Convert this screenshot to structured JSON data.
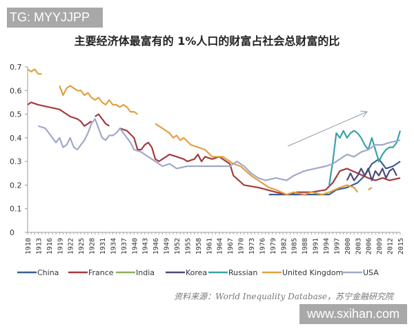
{
  "watermarks": {
    "top_left": "TG: MYYJJPP",
    "bottom_right": "www.sxihan.com"
  },
  "chart_data": {
    "type": "line",
    "title": "主要经济体最富有的 1%人口的财富占社会总财富的比",
    "xlabel": "",
    "ylabel": "",
    "xlim": [
      1910,
      2015
    ],
    "ylim": [
      0,
      0.7
    ],
    "y_ticks": [
      "0",
      "0.1",
      "0.2",
      "0.3",
      "0.4",
      "0.5",
      "0.6",
      "0.7"
    ],
    "x_ticks": [
      "1910",
      "1913",
      "1916",
      "1919",
      "1922",
      "1925",
      "1928",
      "1931",
      "1934",
      "1937",
      "1940",
      "1943",
      "1946",
      "1949",
      "1952",
      "1955",
      "1958",
      "1961",
      "1964",
      "1967",
      "1970",
      "1973",
      "1976",
      "1979",
      "1982",
      "1985",
      "1988",
      "1991",
      "1994",
      "1997",
      "2000",
      "2003",
      "2006",
      "2009",
      "2012",
      "2015"
    ],
    "grid": false,
    "legend_position": "bottom",
    "annotation": "upward-trend-arrow",
    "source": "资料来源：World Inequality Database，苏宁金融研究院",
    "series": [
      {
        "name": "China",
        "color": "#3a5f8f",
        "points": [
          [
            1978,
            0.16
          ],
          [
            1985,
            0.16
          ],
          [
            1990,
            0.16
          ],
          [
            1995,
            0.16
          ],
          [
            1997,
            0.18
          ],
          [
            2000,
            0.19
          ],
          [
            2003,
            0.21
          ],
          [
            2005,
            0.24
          ],
          [
            2007,
            0.29
          ],
          [
            2009,
            0.31
          ],
          [
            2011,
            0.27
          ],
          [
            2013,
            0.28
          ],
          [
            2015,
            0.3
          ]
        ]
      },
      {
        "name": "France",
        "color": "#a33a3e",
        "points": [
          [
            1910,
            0.54
          ],
          [
            1911,
            0.55
          ],
          [
            1913,
            0.54
          ],
          [
            1916,
            0.53
          ],
          [
            1919,
            0.52
          ],
          [
            1922,
            0.49
          ],
          [
            1924,
            0.48
          ],
          [
            1925,
            0.47
          ],
          [
            1926,
            0.45
          ],
          [
            1928,
            0.47
          ],
          [
            1928.5,
            null
          ],
          [
            1929,
            0.49
          ],
          [
            1930,
            0.5
          ],
          [
            1932,
            0.46
          ],
          [
            1933,
            0.45
          ],
          [
            1934,
            null
          ],
          [
            1936,
            0.44
          ],
          [
            1938,
            0.43
          ],
          [
            1940,
            0.4
          ],
          [
            1941,
            0.35
          ],
          [
            1942,
            0.35
          ],
          [
            1943,
            0.37
          ],
          [
            1944,
            0.38
          ],
          [
            1945,
            0.36
          ],
          [
            1946,
            0.31
          ],
          [
            1947,
            0.3
          ],
          [
            1948,
            0.31
          ],
          [
            1950,
            0.33
          ],
          [
            1952,
            0.32
          ],
          [
            1954,
            0.31
          ],
          [
            1955,
            0.3
          ],
          [
            1957,
            0.31
          ],
          [
            1958,
            0.33
          ],
          [
            1959,
            0.3
          ],
          [
            1960,
            0.32
          ],
          [
            1962,
            0.31
          ],
          [
            1964,
            0.32
          ],
          [
            1967,
            0.29
          ],
          [
            1968,
            0.24
          ],
          [
            1971,
            0.2
          ],
          [
            1975,
            0.19
          ],
          [
            1980,
            0.17
          ],
          [
            1983,
            0.16
          ],
          [
            1986,
            0.17
          ],
          [
            1990,
            0.17
          ],
          [
            1994,
            0.18
          ],
          [
            1996,
            0.21
          ],
          [
            1998,
            0.26
          ],
          [
            2000,
            0.27
          ],
          [
            2003,
            0.25
          ],
          [
            2006,
            0.23
          ],
          [
            2008,
            0.22
          ],
          [
            2010,
            0.23
          ],
          [
            2012,
            0.22
          ],
          [
            2015,
            0.23
          ]
        ]
      },
      {
        "name": "India",
        "color": "#8fb05a",
        "points": []
      },
      {
        "name": "Korea",
        "color": "#4a4a7a",
        "points": [
          [
            2000,
            0.22
          ],
          [
            2001,
            0.25
          ],
          [
            2002,
            0.22
          ],
          [
            2003,
            0.24
          ],
          [
            2004,
            0.27
          ],
          [
            2005,
            0.24
          ],
          [
            2006,
            0.27
          ],
          [
            2007,
            0.22
          ],
          [
            2008,
            0.26
          ],
          [
            2009,
            0.24
          ],
          [
            2010,
            0.27
          ],
          [
            2011,
            0.23
          ],
          [
            2012,
            0.26
          ],
          [
            2013,
            0.27
          ],
          [
            2014,
            0.24
          ]
        ]
      },
      {
        "name": "Russian",
        "color": "#3aa0aa",
        "points": [
          [
            1995,
            0.2
          ],
          [
            1996,
            0.3
          ],
          [
            1997,
            0.42
          ],
          [
            1998,
            0.4
          ],
          [
            1999,
            0.43
          ],
          [
            2000,
            0.4
          ],
          [
            2001,
            0.42
          ],
          [
            2002,
            0.43
          ],
          [
            2003,
            0.42
          ],
          [
            2004,
            0.4
          ],
          [
            2005,
            0.37
          ],
          [
            2006,
            0.35
          ],
          [
            2007,
            0.4
          ],
          [
            2008,
            0.35
          ],
          [
            2009,
            0.3
          ],
          [
            2010,
            0.33
          ],
          [
            2011,
            0.35
          ],
          [
            2012,
            0.36
          ],
          [
            2013,
            0.36
          ],
          [
            2014,
            0.38
          ],
          [
            2015,
            0.43
          ]
        ]
      },
      {
        "name": "United Kingdom",
        "color": "#e0a040",
        "points": [
          [
            1910,
            0.69
          ],
          [
            1911,
            0.68
          ],
          [
            1912,
            0.69
          ],
          [
            1913,
            0.67
          ],
          [
            1914,
            0.67
          ],
          [
            1915,
            null
          ],
          [
            1919,
            0.62
          ],
          [
            1920,
            0.58
          ],
          [
            1921,
            0.61
          ],
          [
            1922,
            0.62
          ],
          [
            1923,
            0.61
          ],
          [
            1924,
            0.6
          ],
          [
            1925,
            0.6
          ],
          [
            1926,
            0.58
          ],
          [
            1927,
            0.59
          ],
          [
            1928,
            0.57
          ],
          [
            1929,
            0.56
          ],
          [
            1930,
            0.57
          ],
          [
            1931,
            0.55
          ],
          [
            1932,
            0.54
          ],
          [
            1933,
            0.56
          ],
          [
            1934,
            0.54
          ],
          [
            1935,
            0.54
          ],
          [
            1936,
            0.53
          ],
          [
            1937,
            0.54
          ],
          [
            1938,
            0.53
          ],
          [
            1939,
            0.51
          ],
          [
            1940,
            0.51
          ],
          [
            1941,
            0.5
          ],
          [
            1943,
            null
          ],
          [
            1946,
            0.46
          ],
          [
            1948,
            0.44
          ],
          [
            1950,
            0.42
          ],
          [
            1951,
            0.4
          ],
          [
            1952,
            0.41
          ],
          [
            1953,
            0.39
          ],
          [
            1954,
            0.4
          ],
          [
            1956,
            0.37
          ],
          [
            1958,
            0.36
          ],
          [
            1960,
            0.35
          ],
          [
            1962,
            0.32
          ],
          [
            1965,
            0.32
          ],
          [
            1968,
            0.29
          ],
          [
            1970,
            0.28
          ],
          [
            1973,
            0.24
          ],
          [
            1975,
            0.22
          ],
          [
            1978,
            0.19
          ],
          [
            1980,
            0.18
          ],
          [
            1983,
            0.16
          ],
          [
            1985,
            0.17
          ],
          [
            1988,
            0.16
          ],
          [
            1990,
            0.17
          ],
          [
            1993,
            0.16
          ],
          [
            1995,
            0.17
          ],
          [
            1998,
            0.19
          ],
          [
            2000,
            0.2
          ],
          [
            2002,
            0.19
          ],
          [
            2003,
            0.17
          ],
          [
            2004,
            null
          ],
          [
            2006,
            0.18
          ],
          [
            2007,
            0.19
          ]
        ]
      },
      {
        "name": "USA",
        "color": "#a0a8c8",
        "points": [
          [
            1913,
            0.45
          ],
          [
            1915,
            0.44
          ],
          [
            1917,
            0.4
          ],
          [
            1918,
            0.38
          ],
          [
            1919,
            0.4
          ],
          [
            1920,
            0.36
          ],
          [
            1921,
            0.37
          ],
          [
            1922,
            0.4
          ],
          [
            1923,
            0.36
          ],
          [
            1924,
            0.35
          ],
          [
            1925,
            0.37
          ],
          [
            1926,
            0.39
          ],
          [
            1927,
            0.42
          ],
          [
            1928,
            0.46
          ],
          [
            1929,
            0.48
          ],
          [
            1930,
            0.44
          ],
          [
            1931,
            0.4
          ],
          [
            1932,
            0.39
          ],
          [
            1933,
            0.41
          ],
          [
            1934,
            0.41
          ],
          [
            1935,
            0.42
          ],
          [
            1936,
            0.44
          ],
          [
            1937,
            0.42
          ],
          [
            1938,
            0.4
          ],
          [
            1939,
            0.38
          ],
          [
            1940,
            0.35
          ],
          [
            1942,
            0.34
          ],
          [
            1944,
            0.32
          ],
          [
            1946,
            0.3
          ],
          [
            1948,
            0.28
          ],
          [
            1950,
            0.29
          ],
          [
            1952,
            0.27
          ],
          [
            1955,
            0.28
          ],
          [
            1958,
            0.28
          ],
          [
            1961,
            0.28
          ],
          [
            1964,
            0.28
          ],
          [
            1967,
            0.28
          ],
          [
            1969,
            0.3
          ],
          [
            1971,
            0.28
          ],
          [
            1973,
            0.25
          ],
          [
            1975,
            0.23
          ],
          [
            1977,
            0.22
          ],
          [
            1980,
            0.23
          ],
          [
            1983,
            0.22
          ],
          [
            1985,
            0.24
          ],
          [
            1988,
            0.26
          ],
          [
            1991,
            0.27
          ],
          [
            1994,
            0.28
          ],
          [
            1996,
            0.29
          ],
          [
            1998,
            0.31
          ],
          [
            2000,
            0.33
          ],
          [
            2002,
            0.32
          ],
          [
            2004,
            0.34
          ],
          [
            2006,
            0.35
          ],
          [
            2008,
            0.37
          ],
          [
            2010,
            0.37
          ],
          [
            2012,
            0.38
          ],
          [
            2015,
            0.39
          ]
        ]
      }
    ]
  }
}
